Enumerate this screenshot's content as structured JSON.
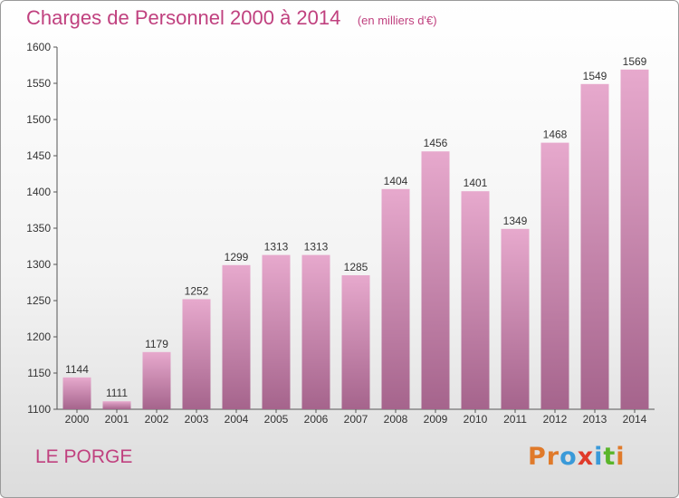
{
  "header": {
    "title": "Charges de Personnel 2000 à 2014",
    "subtitle": "(en milliers d'€)"
  },
  "footer": {
    "commune": "LE PORGE",
    "brand": "Proxiti"
  },
  "colors": {
    "accent": "#c0417f",
    "bar_top": "#e7a9cd",
    "bar_bottom": "#a5648c",
    "brand_letters": [
      "#e07a2a",
      "#e07a2a",
      "#3a9ad9",
      "#e03a2a",
      "#3a9ad9",
      "#5ab52a",
      "#e07a2a"
    ]
  },
  "chart_data": {
    "type": "bar",
    "categories": [
      "2000",
      "2001",
      "2002",
      "2003",
      "2004",
      "2005",
      "2006",
      "2007",
      "2008",
      "2009",
      "2010",
      "2011",
      "2012",
      "2013",
      "2014"
    ],
    "values": [
      1144,
      1111,
      1179,
      1252,
      1299,
      1313,
      1313,
      1285,
      1404,
      1456,
      1401,
      1349,
      1468,
      1549,
      1569
    ],
    "ylim": [
      1100,
      1600
    ],
    "yticks": [
      1100,
      1150,
      1200,
      1250,
      1300,
      1350,
      1400,
      1450,
      1500,
      1550,
      1600
    ],
    "grid": false,
    "legend": "none"
  }
}
